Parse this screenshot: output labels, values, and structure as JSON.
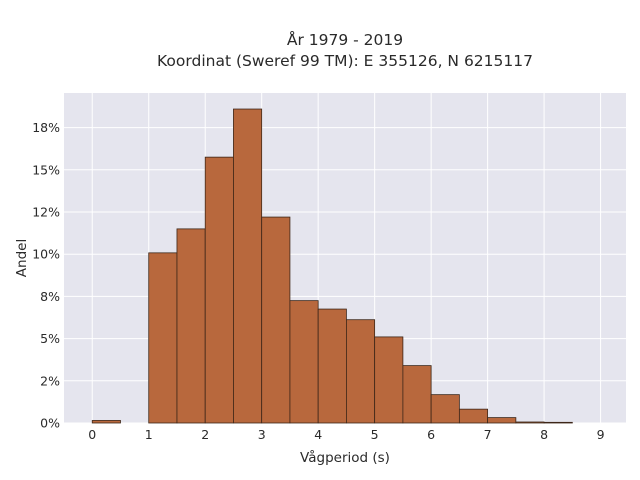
{
  "chart_data": {
    "type": "bar",
    "title": "År 1979 - 2019",
    "subtitle": "Koordinat (Sweref 99 TM): E 355126, N 6215117",
    "xlabel": "Vågperiod (s)",
    "ylabel": "Andel",
    "xlim": [
      -0.5,
      9.45
    ],
    "ylim": [
      0,
      0.1955
    ],
    "x_ticks": [
      0,
      1,
      2,
      3,
      4,
      5,
      6,
      7,
      8,
      9
    ],
    "y_ticks": [
      0,
      0.025,
      0.05,
      0.075,
      0.1,
      0.125,
      0.15,
      0.175
    ],
    "y_tick_labels": [
      "0%",
      "2%",
      "5%",
      "8%",
      "10%",
      "12%",
      "15%",
      "18%"
    ],
    "bin_width": 0.5,
    "bins": [
      {
        "x0": 0.0,
        "x1": 0.5,
        "value": 0.0015
      },
      {
        "x0": 1.0,
        "x1": 1.5,
        "value": 0.1008
      },
      {
        "x0": 1.5,
        "x1": 2.0,
        "value": 0.115
      },
      {
        "x0": 2.0,
        "x1": 2.5,
        "value": 0.1575
      },
      {
        "x0": 2.5,
        "x1": 3.0,
        "value": 0.186
      },
      {
        "x0": 3.0,
        "x1": 3.5,
        "value": 0.122
      },
      {
        "x0": 3.5,
        "x1": 4.0,
        "value": 0.0725
      },
      {
        "x0": 4.0,
        "x1": 4.5,
        "value": 0.0675
      },
      {
        "x0": 4.5,
        "x1": 5.0,
        "value": 0.0612
      },
      {
        "x0": 5.0,
        "x1": 5.5,
        "value": 0.051
      },
      {
        "x0": 5.5,
        "x1": 6.0,
        "value": 0.034
      },
      {
        "x0": 6.0,
        "x1": 6.5,
        "value": 0.0168
      },
      {
        "x0": 6.5,
        "x1": 7.0,
        "value": 0.0082
      },
      {
        "x0": 7.0,
        "x1": 7.5,
        "value": 0.0032
      },
      {
        "x0": 7.5,
        "x1": 8.0,
        "value": 0.0006
      },
      {
        "x0": 8.0,
        "x1": 8.5,
        "value": 0.0004
      }
    ],
    "grid": true,
    "colors": {
      "bar_fill": "#b8683d",
      "bar_stroke": "#3d2618",
      "plot_background": "#e5e5ee",
      "grid": "#ffffff"
    }
  }
}
